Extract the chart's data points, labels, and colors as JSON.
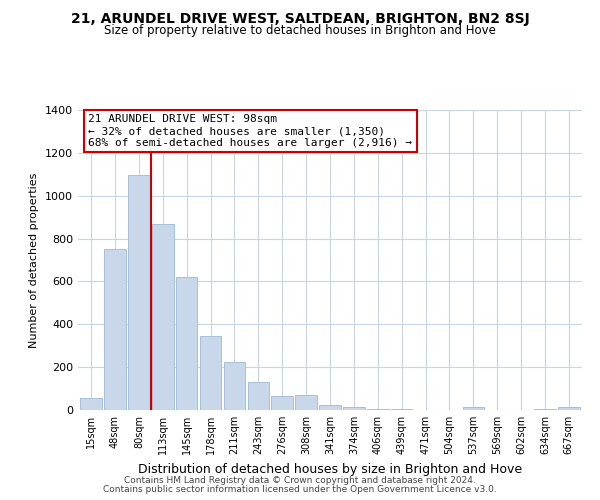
{
  "title": "21, ARUNDEL DRIVE WEST, SALTDEAN, BRIGHTON, BN2 8SJ",
  "subtitle": "Size of property relative to detached houses in Brighton and Hove",
  "xlabel": "Distribution of detached houses by size in Brighton and Hove",
  "ylabel": "Number of detached properties",
  "bar_labels": [
    "15sqm",
    "48sqm",
    "80sqm",
    "113sqm",
    "145sqm",
    "178sqm",
    "211sqm",
    "243sqm",
    "276sqm",
    "308sqm",
    "341sqm",
    "374sqm",
    "406sqm",
    "439sqm",
    "471sqm",
    "504sqm",
    "537sqm",
    "569sqm",
    "602sqm",
    "634sqm",
    "667sqm"
  ],
  "bar_heights": [
    55,
    750,
    1095,
    870,
    620,
    345,
    225,
    130,
    65,
    70,
    25,
    15,
    5,
    3,
    0,
    0,
    12,
    0,
    0,
    5,
    12
  ],
  "bar_color": "#c8d8ea",
  "bar_edge_color": "#a8c0d8",
  "vline_x_index": 2,
  "vline_color": "#cc0000",
  "annotation_text": "21 ARUNDEL DRIVE WEST: 98sqm\n← 32% of detached houses are smaller (1,350)\n68% of semi-detached houses are larger (2,916) →",
  "annotation_box_color": "#ffffff",
  "annotation_box_edge_color": "#cc0000",
  "ylim": [
    0,
    1400
  ],
  "yticks": [
    0,
    200,
    400,
    600,
    800,
    1000,
    1200,
    1400
  ],
  "footer_line1": "Contains HM Land Registry data © Crown copyright and database right 2024.",
  "footer_line2": "Contains public sector information licensed under the Open Government Licence v3.0.",
  "background_color": "#ffffff",
  "grid_color": "#c8d4de"
}
